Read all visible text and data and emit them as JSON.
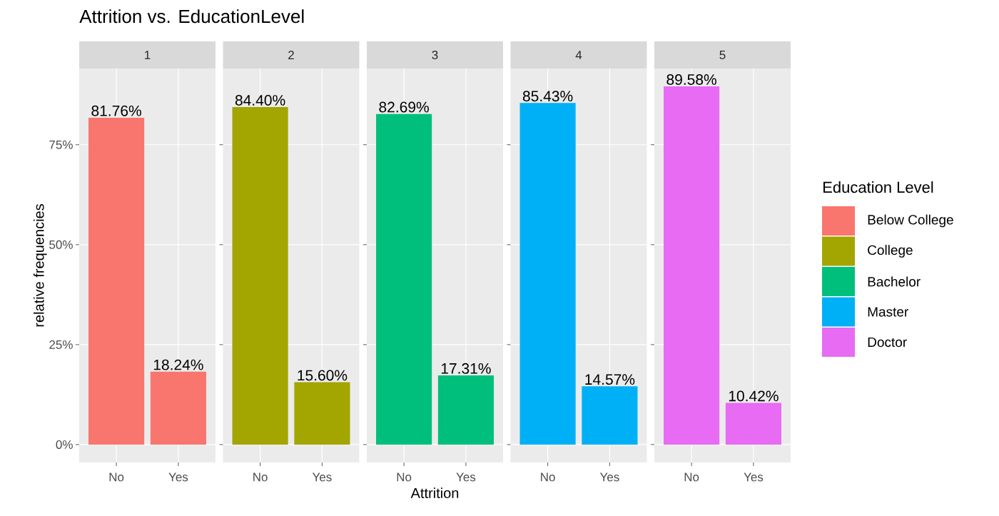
{
  "chart_data": [
    {
      "type": "bar",
      "title": "Attrition vs. EducationLevel",
      "subtitle": "1",
      "ylabel": "relative frequencies",
      "categories": [
        "No",
        "Yes"
      ],
      "series": [
        {
          "name": "Below College",
          "color": "#f8766d",
          "values": [
            81.76,
            18.24
          ]
        }
      ],
      "value_labels": [
        "81.76%",
        "18.24%"
      ],
      "ylim": [
        -4.48,
        94.06
      ],
      "yticks": [
        {
          "value": 0,
          "label": "0%"
        },
        {
          "value": 25,
          "label": "25%"
        },
        {
          "value": 50,
          "label": "50%"
        },
        {
          "value": 75,
          "label": "75%"
        }
      ],
      "grid": true,
      "legend": "right"
    },
    {
      "type": "bar",
      "subtitle": "2",
      "categories": [
        "No",
        "Yes"
      ],
      "series": [
        {
          "name": "College",
          "color": "#a3a500",
          "values": [
            84.4,
            15.6
          ]
        }
      ],
      "value_labels": [
        "84.40%",
        "15.60%"
      ],
      "ylim": [
        -4.48,
        94.06
      ],
      "yticks": [
        {
          "value": 0,
          "label": null
        },
        {
          "value": 25,
          "label": null
        },
        {
          "value": 50,
          "label": null
        },
        {
          "value": 75,
          "label": null
        }
      ],
      "tick_labels": "x",
      "grid": true,
      "legend": "right"
    },
    {
      "type": "bar",
      "subtitle": "3",
      "xlabel": "Attrition",
      "categories": [
        "No",
        "Yes"
      ],
      "series": [
        {
          "name": "Bachelor",
          "color": "#00bf7d",
          "values": [
            82.69,
            17.31
          ]
        }
      ],
      "value_labels": [
        "82.69%",
        "17.31%"
      ],
      "ylim": [
        -4.48,
        94.06
      ],
      "yticks": [
        {
          "value": 0,
          "label": null
        },
        {
          "value": 25,
          "label": null
        },
        {
          "value": 50,
          "label": null
        },
        {
          "value": 75,
          "label": null
        }
      ],
      "tick_labels": "x",
      "grid": true,
      "legend": "right"
    },
    {
      "type": "bar",
      "subtitle": "4",
      "categories": [
        "No",
        "Yes"
      ],
      "series": [
        {
          "name": "Master",
          "color": "#00b0f6",
          "values": [
            85.43,
            14.57
          ]
        }
      ],
      "value_labels": [
        "85.43%",
        "14.57%"
      ],
      "ylim": [
        -4.48,
        94.06
      ],
      "yticks": [
        {
          "value": 0,
          "label": null
        },
        {
          "value": 25,
          "label": null
        },
        {
          "value": 50,
          "label": null
        },
        {
          "value": 75,
          "label": null
        }
      ],
      "tick_labels": "x",
      "grid": true,
      "legend": "right"
    },
    {
      "type": "bar",
      "subtitle": "5",
      "legend_title": "Education Level",
      "categories": [
        "No",
        "Yes"
      ],
      "series": [
        {
          "name": "Doctor",
          "color": "#e76bf3",
          "values": [
            89.58,
            10.42
          ]
        }
      ],
      "value_labels": [
        "89.58%",
        "10.42%"
      ],
      "ylim": [
        -4.48,
        94.06
      ],
      "yticks": [
        {
          "value": 0,
          "label": null
        },
        {
          "value": 25,
          "label": null
        },
        {
          "value": 50,
          "label": null
        },
        {
          "value": 75,
          "label": null
        }
      ],
      "tick_labels": "x",
      "grid": true,
      "legend": "right"
    }
  ]
}
